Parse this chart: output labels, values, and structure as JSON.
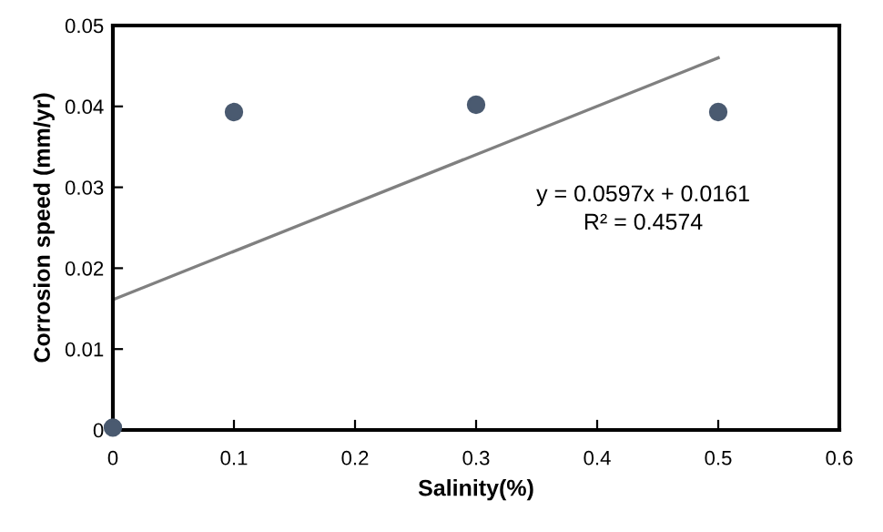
{
  "chart_data": {
    "type": "scatter",
    "xlabel": "Salinity(%)",
    "ylabel": "Corrosion speed (mm/yr)",
    "series": [
      {
        "color": "#4a5a70",
        "x": [
          0,
          0.1,
          0.3,
          0.5
        ],
        "values": [
          0.0003,
          0.0393,
          0.0402,
          0.0393
        ],
        "marker": "circle"
      },
      {
        "type": "line",
        "color": "#808080",
        "x": [
          0,
          0.5
        ],
        "values": [
          0.0161,
          0.046
        ],
        "marker": "none",
        "line_style": "solid"
      }
    ],
    "xlim": [
      0,
      0.6
    ],
    "xticks": [
      0,
      0.1,
      0.2,
      0.3,
      0.4,
      0.5,
      0.6
    ],
    "ylim": [
      0,
      0.05
    ],
    "yticks": [
      0,
      0.01,
      0.02,
      0.03,
      0.04,
      0.05
    ],
    "grid": false,
    "legend": false,
    "annotations": [
      "y = 0.0597x + 0.0161",
      "R² = 0.4574"
    ]
  }
}
